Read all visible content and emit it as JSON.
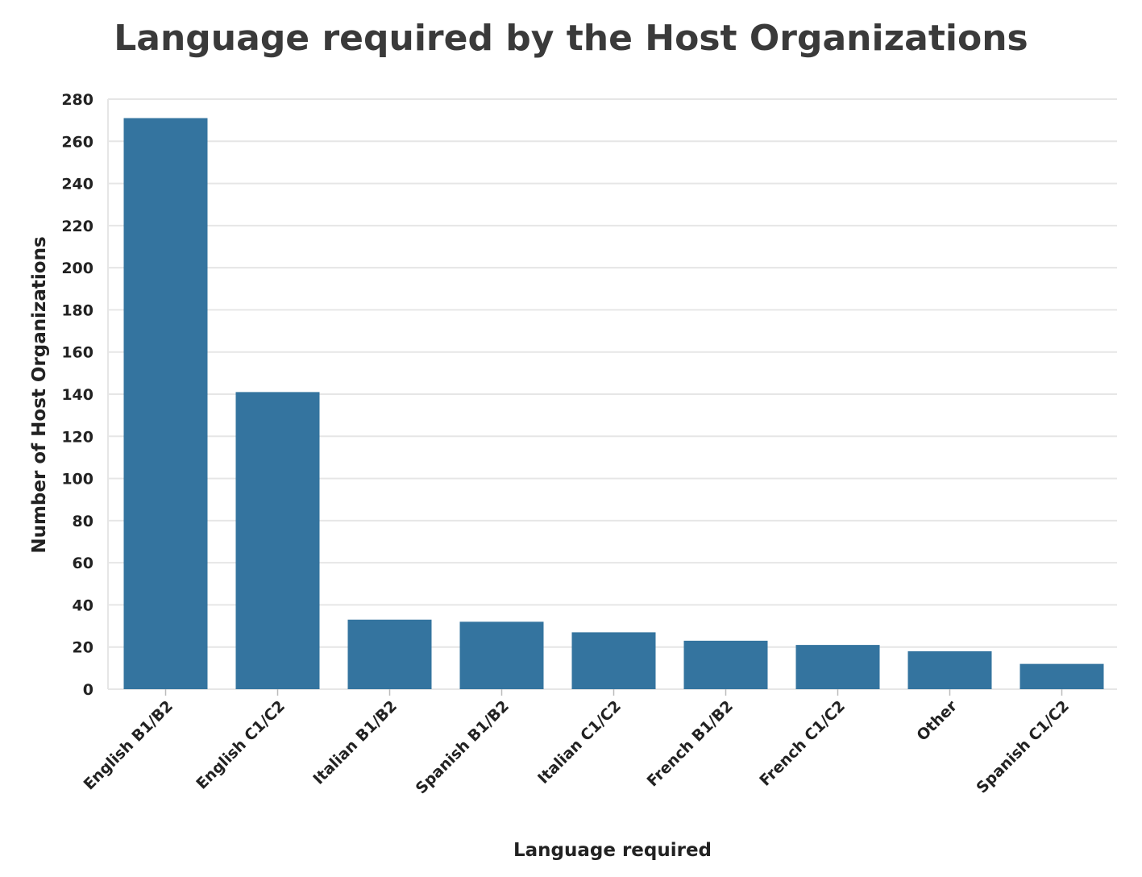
{
  "chart_data": {
    "type": "bar",
    "title": "Language required by the Host Organizations",
    "xlabel": "Language required",
    "ylabel": "Number of Host Organizations",
    "categories": [
      "English B1/B2",
      "English C1/C2",
      "Italian B1/B2",
      "Spanish B1/B2",
      "Italian C1/C2",
      "French B1/B2",
      "French C1/C2",
      "Other",
      "Spanish C1/C2"
    ],
    "values": [
      271,
      141,
      33,
      32,
      27,
      23,
      21,
      18,
      12
    ],
    "ylim": [
      0,
      280
    ],
    "yticks": [
      "0",
      "20",
      "40",
      "60",
      "80",
      "100",
      "120",
      "140",
      "160",
      "180",
      "200",
      "220",
      "240",
      "260",
      "280"
    ],
    "grid": true,
    "bar_color": "#34749f",
    "grid_color": "#e6e6e6"
  }
}
